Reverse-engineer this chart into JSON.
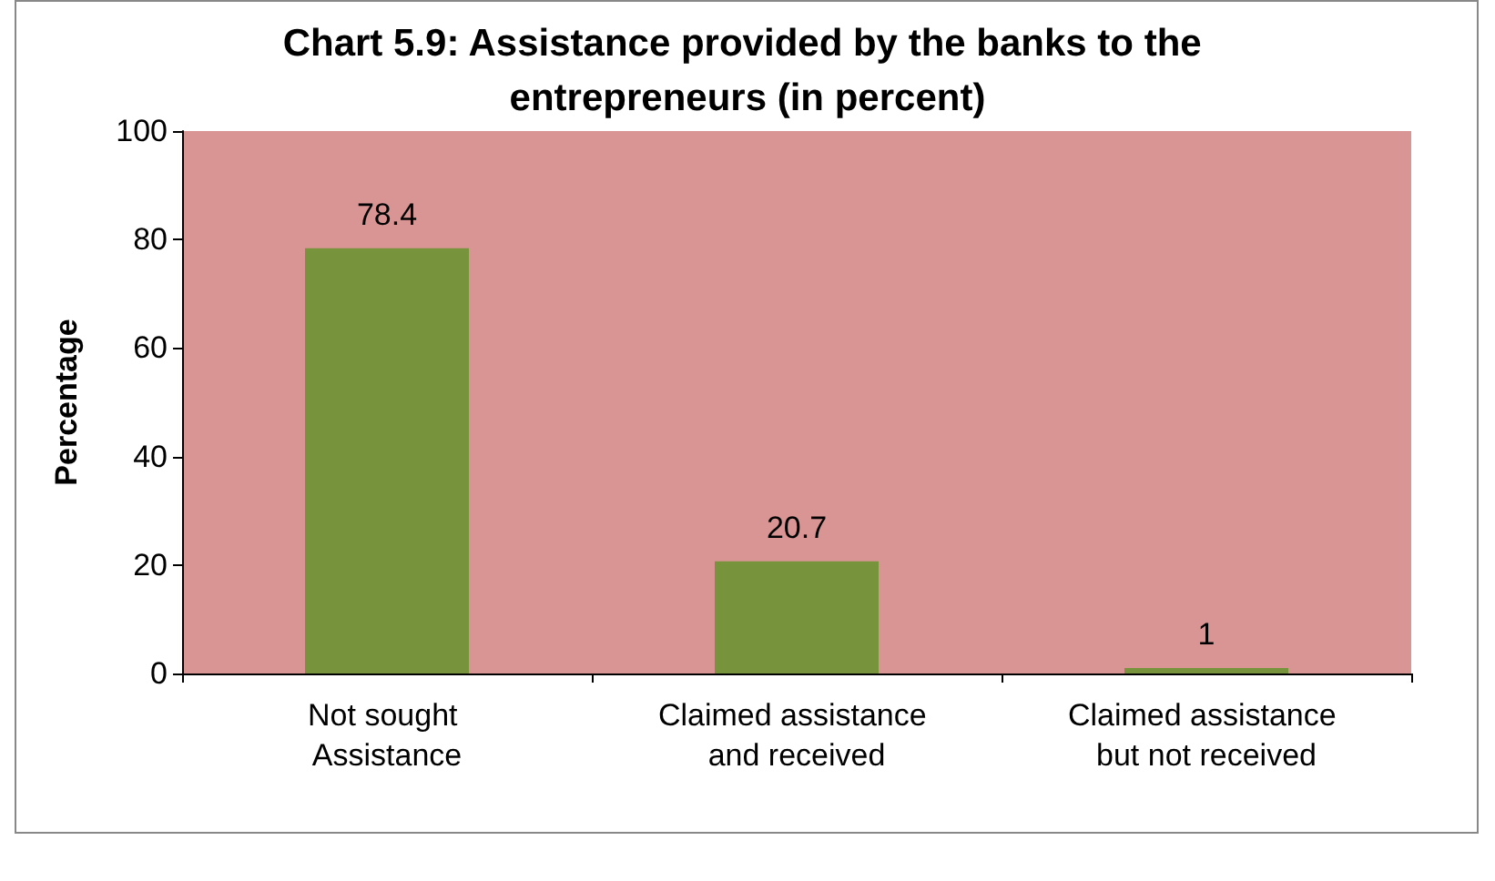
{
  "chart_data": {
    "type": "bar",
    "title": "Chart 5.9: Assistance provided by the banks to the entrepreneurs (in percent)",
    "ylabel": "Percentage",
    "categories": [
      "Not sought Assistance",
      "Claimed assistance and received",
      "Claimed assistance but not received"
    ],
    "values": [
      78.4,
      20.7,
      1
    ],
    "color": "#77933c",
    "ylim": [
      0,
      100
    ],
    "yticks": [
      0,
      20,
      40,
      60,
      80,
      100
    ],
    "grid": false,
    "data_labels": true
  }
}
